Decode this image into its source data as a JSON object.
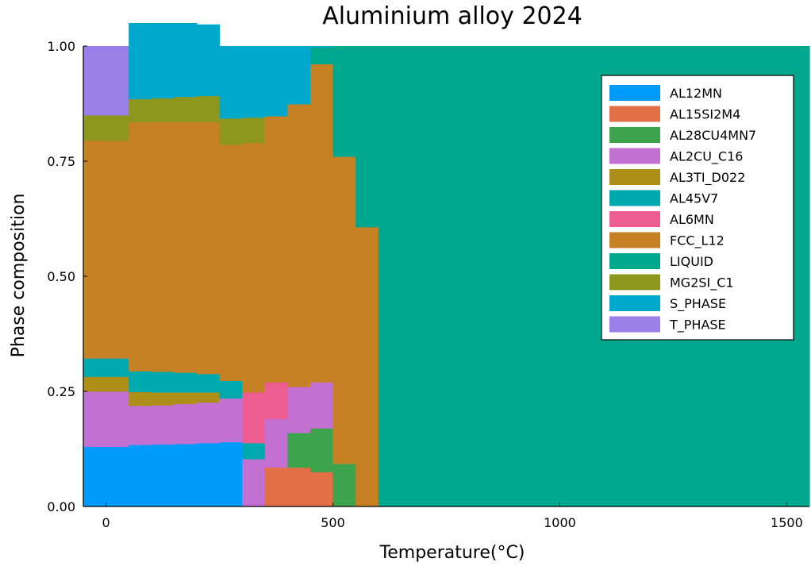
{
  "chart_data": {
    "type": "area",
    "title": "Aluminium alloy 2024",
    "xlabel": "Temperature(°C)",
    "ylabel": "Phase composition",
    "xlim": [
      -50,
      1550
    ],
    "ylim": [
      0,
      1
    ],
    "xticks": [
      0,
      500,
      1000,
      1500
    ],
    "yticks": [
      0,
      0.25,
      0.5,
      0.75,
      1.0
    ],
    "xtick_labels": [
      "0",
      "500",
      "1000",
      "1500"
    ],
    "ytick_labels": [
      "0.00",
      "0.25",
      "0.50",
      "0.75",
      "1.00"
    ],
    "grid": false,
    "legend_position": "top-right",
    "x": [
      -25,
      25,
      75,
      125,
      175,
      225,
      275,
      325,
      375,
      425,
      475,
      525,
      575,
      625,
      675,
      725,
      775,
      825,
      875,
      925,
      975,
      1025,
      1075,
      1125,
      1175,
      1225,
      1275,
      1325,
      1375,
      1425,
      1475,
      1525
    ],
    "series": [
      {
        "name": "AL12MN",
        "color": "#009af9",
        "values": [
          0.13,
          0.13,
          0.134,
          0.135,
          0.136,
          0.138,
          0.14,
          0.0,
          0,
          0,
          0,
          0,
          0,
          0,
          0,
          0,
          0,
          0,
          0,
          0,
          0,
          0,
          0,
          0,
          0,
          0,
          0,
          0,
          0,
          0,
          0,
          0
        ]
      },
      {
        "name": "AL15SI2M4",
        "color": "#e26f46",
        "values": [
          0,
          0,
          0,
          0,
          0,
          0,
          0,
          0,
          0.085,
          0.085,
          0.075,
          0,
          0,
          0,
          0,
          0,
          0,
          0,
          0,
          0,
          0,
          0,
          0,
          0,
          0,
          0,
          0,
          0,
          0,
          0,
          0,
          0
        ]
      },
      {
        "name": "AL28CU4MN7",
        "color": "#3da44d",
        "values": [
          0,
          0,
          0,
          0,
          0,
          0,
          0,
          0,
          0,
          0.075,
          0.095,
          0.093,
          0,
          0,
          0,
          0,
          0,
          0,
          0,
          0,
          0,
          0,
          0,
          0,
          0,
          0,
          0,
          0,
          0,
          0,
          0,
          0
        ]
      },
      {
        "name": "AL2CU_C16",
        "color": "#c271d2",
        "values": [
          0.12,
          0.12,
          0.085,
          0.085,
          0.087,
          0.088,
          0.095,
          0.103,
          0.105,
          0.1,
          0.1,
          0,
          0,
          0,
          0,
          0,
          0,
          0,
          0,
          0,
          0,
          0,
          0,
          0,
          0,
          0,
          0,
          0,
          0,
          0,
          0,
          0
        ]
      },
      {
        "name": "AL3TI_D022",
        "color": "#ac8e18",
        "values": [
          0.032,
          0.032,
          0.03,
          0.028,
          0.025,
          0.022,
          0.0,
          0,
          0,
          0,
          0,
          0,
          0,
          0,
          0,
          0,
          0,
          0,
          0,
          0,
          0,
          0,
          0,
          0,
          0,
          0,
          0,
          0,
          0,
          0,
          0,
          0
        ]
      },
      {
        "name": "AL45V7",
        "color": "#00a9ad",
        "values": [
          0.04,
          0.04,
          0.045,
          0.045,
          0.043,
          0.04,
          0.038,
          0.035,
          0.0,
          0,
          0,
          0,
          0,
          0,
          0,
          0,
          0,
          0,
          0,
          0,
          0,
          0,
          0,
          0,
          0,
          0,
          0,
          0,
          0,
          0,
          0,
          0
        ]
      },
      {
        "name": "AL6MN",
        "color": "#ed5d92",
        "values": [
          0,
          0,
          0,
          0,
          0,
          0,
          0,
          0.11,
          0.08,
          0,
          0,
          0,
          0,
          0,
          0,
          0,
          0,
          0,
          0,
          0,
          0,
          0,
          0,
          0,
          0,
          0,
          0,
          0,
          0,
          0,
          0,
          0
        ]
      },
      {
        "name": "FCC_L12",
        "color": "#c68125",
        "values": [
          0.473,
          0.473,
          0.541,
          0.542,
          0.544,
          0.547,
          0.513,
          0.542,
          0.578,
          0.614,
          0.691,
          0.667,
          0.607,
          0,
          0,
          0,
          0,
          0,
          0,
          0,
          0,
          0,
          0,
          0,
          0,
          0,
          0,
          0,
          0,
          0,
          0,
          0
        ]
      },
      {
        "name": "LIQUID",
        "color": "#00a98d",
        "values": [
          0,
          0,
          0,
          0,
          0,
          0,
          0,
          0,
          0,
          0,
          0.037,
          0.24,
          0.393,
          1,
          1,
          1,
          1,
          1,
          1,
          1,
          1,
          1,
          1,
          1,
          1,
          1,
          1,
          1,
          1,
          1,
          1,
          1
        ]
      },
      {
        "name": "MG2SI_C1",
        "color": "#8e971d",
        "values": [
          0.055,
          0.055,
          0.05,
          0.052,
          0.055,
          0.057,
          0.057,
          0.055,
          0,
          0,
          0,
          0,
          0,
          0,
          0,
          0,
          0,
          0,
          0,
          0,
          0,
          0,
          0,
          0,
          0,
          0,
          0,
          0,
          0,
          0,
          0,
          0
        ]
      },
      {
        "name": "S_PHASE",
        "color": "#00a8cb",
        "values": [
          0,
          0,
          0.165,
          0.163,
          0.16,
          0.155,
          0.157,
          0.155,
          0.152,
          0.126,
          0.002,
          0,
          0,
          0,
          0,
          0,
          0,
          0,
          0,
          0,
          0,
          0,
          0,
          0,
          0,
          0,
          0,
          0,
          0,
          0,
          0,
          0
        ]
      },
      {
        "name": "T_PHASE",
        "color": "#9b7fe9",
        "values": [
          0.15,
          0.15,
          0,
          0,
          0,
          0,
          0,
          0,
          0,
          0,
          0,
          0,
          0,
          0,
          0,
          0,
          0,
          0,
          0,
          0,
          0,
          0,
          0,
          0,
          0,
          0,
          0,
          0,
          0,
          0,
          0,
          0
        ]
      }
    ]
  }
}
